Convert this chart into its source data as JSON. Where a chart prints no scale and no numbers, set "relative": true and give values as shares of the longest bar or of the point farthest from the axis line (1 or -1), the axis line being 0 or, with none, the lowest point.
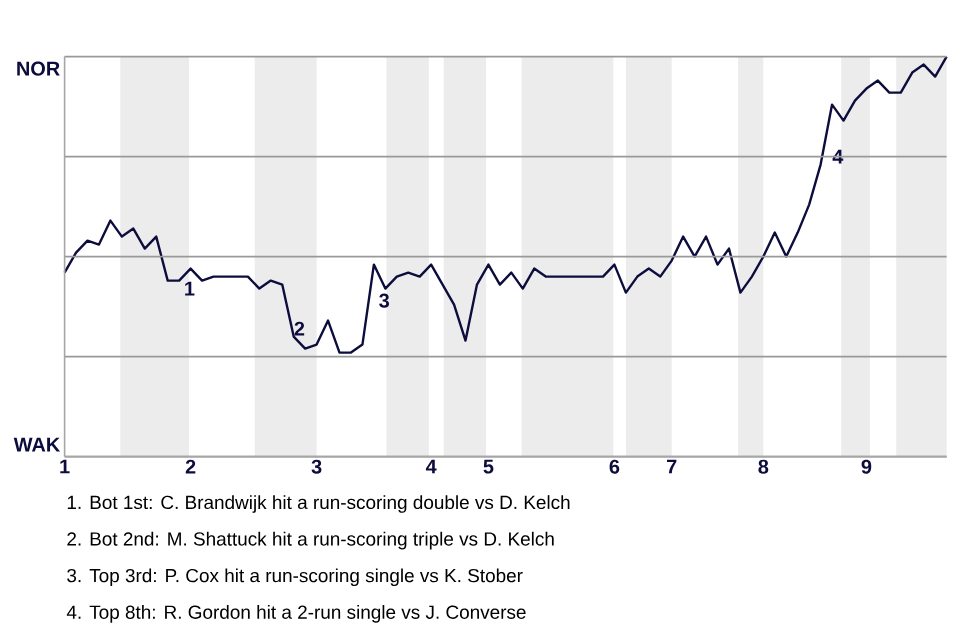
{
  "chart_data": {
    "type": "line",
    "relative": true,
    "categories": [
      "1",
      null,
      null,
      null,
      null,
      null,
      null,
      null,
      null,
      null,
      null,
      "2",
      null,
      null,
      null,
      null,
      null,
      null,
      null,
      null,
      null,
      null,
      "3",
      null,
      null,
      null,
      null,
      null,
      null,
      null,
      null,
      null,
      "4",
      null,
      null,
      null,
      null,
      "5",
      null,
      null,
      null,
      null,
      null,
      null,
      null,
      null,
      null,
      null,
      "6",
      null,
      null,
      null,
      null,
      "7",
      null,
      null,
      null,
      null,
      null,
      null,
      null,
      "8",
      null,
      null,
      null,
      null,
      null,
      null,
      null,
      null,
      "9",
      null,
      null,
      null,
      null,
      null,
      null,
      null
    ],
    "grid": "y",
    "marker": "none",
    "line_style": "solid",
    "series": [
      {
        "color": "#0d0d3d",
        "values": [
          0.46,
          0.51,
          0.54,
          0.53,
          0.59,
          0.55,
          0.57,
          0.52,
          0.55,
          0.44,
          0.44,
          0.47,
          0.44,
          0.45,
          0.45,
          0.45,
          0.45,
          0.42,
          0.44,
          0.43,
          0.3,
          0.27,
          0.28,
          0.34,
          0.26,
          0.26,
          0.28,
          0.48,
          0.42,
          0.45,
          0.46,
          0.45,
          0.48,
          0.43,
          0.38,
          0.29,
          0.43,
          0.48,
          0.43,
          0.46,
          0.42,
          0.47,
          0.45,
          0.45,
          0.45,
          0.45,
          0.45,
          0.45,
          0.48,
          0.41,
          0.45,
          0.47,
          0.45,
          0.49,
          0.55,
          0.5,
          0.55,
          0.48,
          0.52,
          0.41,
          0.45,
          0.5,
          0.56,
          0.5,
          0.56,
          0.63,
          0.73,
          0.88,
          0.84,
          0.89,
          0.92,
          0.94,
          0.91,
          0.91,
          0.96,
          0.98,
          0.95,
          1.0
        ]
      }
    ],
    "annotations": [
      "NOR",
      "WAK",
      "1",
      "2",
      "3",
      "4",
      "1. Bot 1st: C. Brandwijk hit a run-scoring double vs D. Kelch",
      "2. Bot 2nd: M. Shattuck hit a run-scoring triple vs D. Kelch",
      "3. Top 3rd: P. Cox hit a run-scoring single vs K. Stober",
      "4. Top 8th: R. Gordon hit a 2-run single vs J. Converse"
    ]
  }
}
